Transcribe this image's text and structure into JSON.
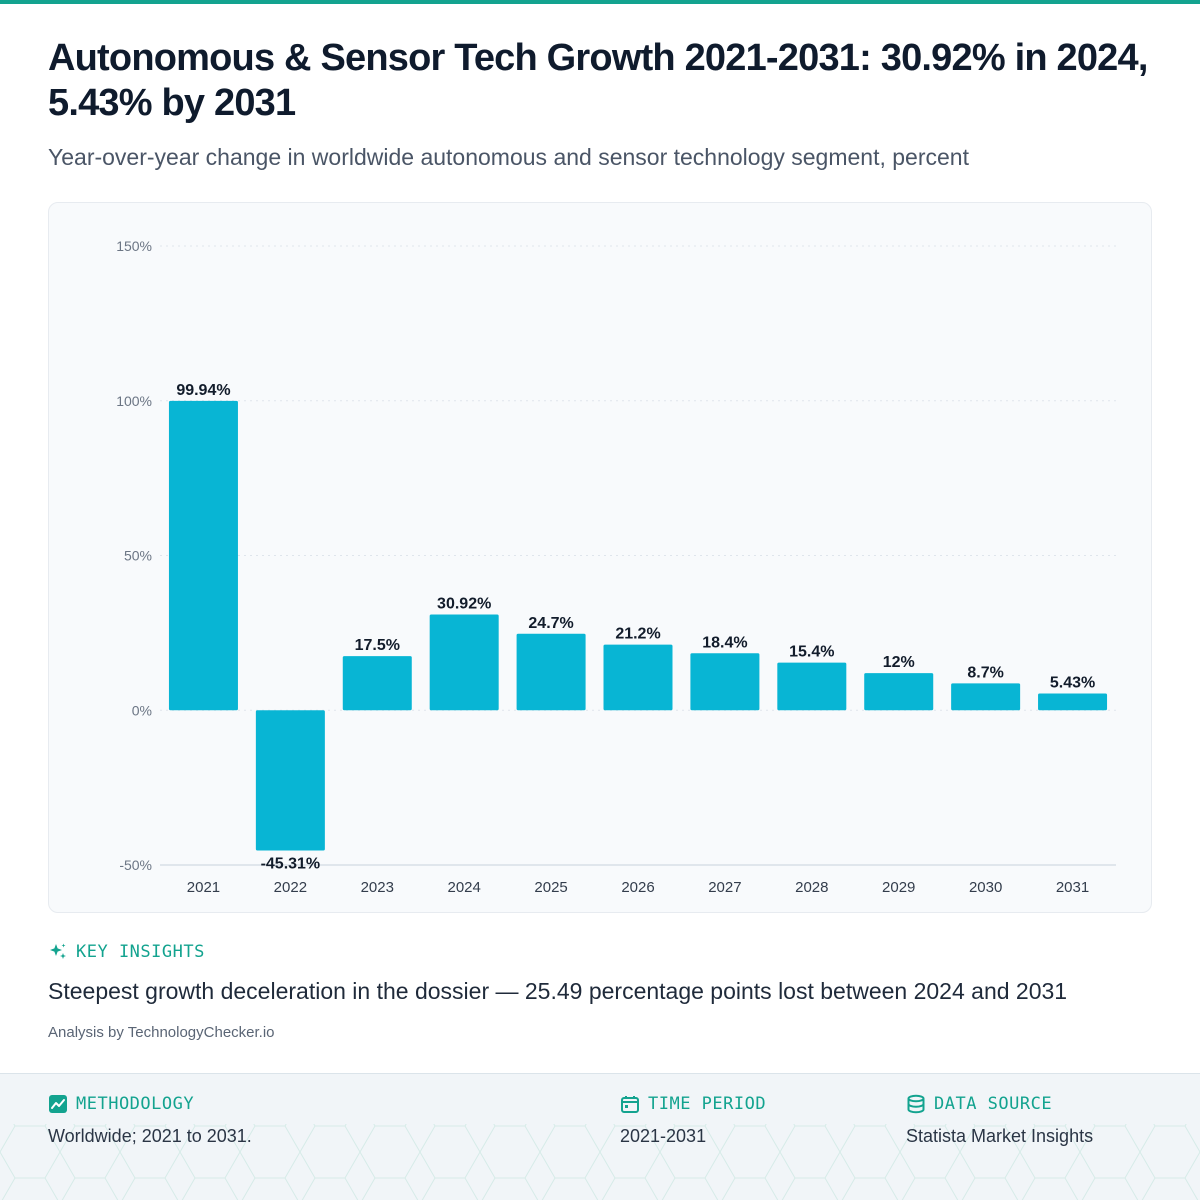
{
  "header": {
    "title": "Autonomous & Sensor Tech Growth 2021-2031: 30.92% in 2024, 5.43% by 2031",
    "subtitle": "Year-over-year change in worldwide autonomous and sensor technology segment, percent"
  },
  "chart_data": {
    "type": "bar",
    "categories": [
      "2021",
      "2022",
      "2023",
      "2024",
      "2025",
      "2026",
      "2027",
      "2028",
      "2029",
      "2030",
      "2031"
    ],
    "values": [
      99.94,
      -45.31,
      17.5,
      30.92,
      24.7,
      21.2,
      18.4,
      15.4,
      12,
      8.7,
      5.43
    ],
    "data_labels": [
      "99.94%",
      "-45.31%",
      "17.5%",
      "30.92%",
      "24.7%",
      "21.2%",
      "18.4%",
      "15.4%",
      "12%",
      "8.7%",
      "5.43%"
    ],
    "y_ticks": [
      150,
      100,
      50,
      0,
      -50
    ],
    "y_tick_labels": [
      "150%",
      "100%",
      "50%",
      "0%",
      "-50%"
    ],
    "ylim": [
      -50,
      150
    ],
    "grid": true,
    "legend": "none",
    "bar_color": "#08b5d4"
  },
  "insights": {
    "label": "KEY INSIGHTS",
    "text": "Steepest growth deceleration in the dossier — 25.49 percentage points lost between 2024 and 2031",
    "attribution": "Analysis by TechnologyChecker.io"
  },
  "footer": {
    "methodology": {
      "label": "METHODOLOGY",
      "value": "Worldwide; 2021 to 2031."
    },
    "time_period": {
      "label": "TIME PERIOD",
      "value": "2021-2031"
    },
    "data_source": {
      "label": "DATA SOURCE",
      "value": "Statista Market Insights"
    }
  },
  "colors": {
    "accent": "#13a38f",
    "bar": "#08b5d4",
    "title": "#0f1b2d"
  },
  "icons": {
    "insights": "sparkle-icon",
    "methodology": "chart-trend-icon",
    "time_period": "calendar-icon",
    "data_source": "database-icon"
  }
}
